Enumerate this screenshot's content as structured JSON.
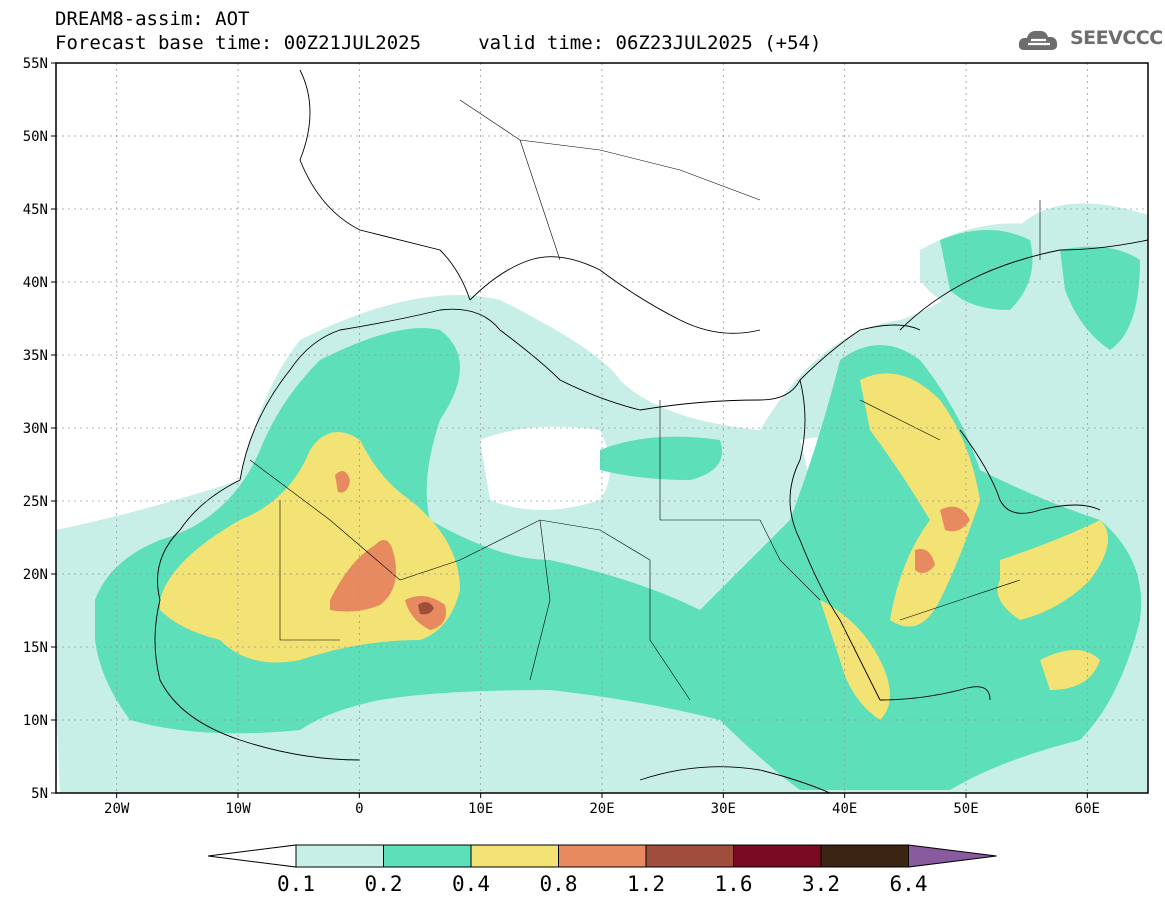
{
  "header": {
    "line1": "DREAM8-assim: AOT",
    "line2": "Forecast base time: 00Z21JUL2025     valid time: 06Z23JUL2025 (+54)"
  },
  "logo": {
    "text": "SEEVCCC",
    "icon": "cloud-icon"
  },
  "axes": {
    "lat_labels": [
      "55N",
      "50N",
      "45N",
      "40N",
      "35N",
      "30N",
      "25N",
      "20N",
      "15N",
      "10N",
      "5N"
    ],
    "lon_labels": [
      "20W",
      "10W",
      "0",
      "10E",
      "20E",
      "30E",
      "40E",
      "50E",
      "60E"
    ]
  },
  "colorbar": {
    "levels": [
      "0.1",
      "0.2",
      "0.4",
      "0.8",
      "1.2",
      "1.6",
      "3.2",
      "6.4"
    ],
    "colors": [
      "#ffffff",
      "#c7efe8",
      "#5ddfba",
      "#f3e274",
      "#e88a5f",
      "#a04e3c",
      "#7a0a23",
      "#3b2413",
      "#8a5a9e"
    ]
  },
  "colors": {
    "land_bg": "#ffffff",
    "border": "#000000",
    "grid": "#888888"
  }
}
